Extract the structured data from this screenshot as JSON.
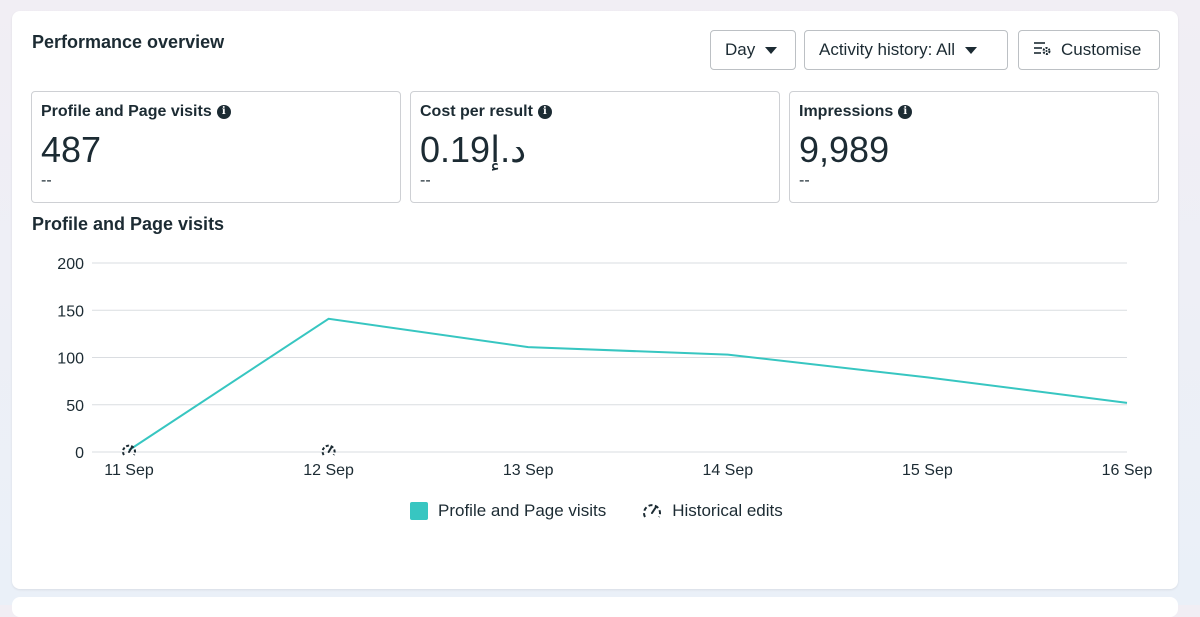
{
  "header": {
    "title": "Performance overview",
    "day_label": "Day",
    "activity_label": "Activity history: All",
    "customise_label": "Customise"
  },
  "metrics": [
    {
      "label": "Profile and Page visits",
      "value": "487",
      "compare": "--"
    },
    {
      "label": "Cost per result",
      "value": "0.19د.إ",
      "compare": "--"
    },
    {
      "label": "Impressions",
      "value": "9,989",
      "compare": "--"
    }
  ],
  "chart_title": "Profile and Page visits",
  "chart_data": {
    "type": "line",
    "categories": [
      "11 Sep",
      "12 Sep",
      "13 Sep",
      "14 Sep",
      "15 Sep",
      "16 Sep"
    ],
    "series": [
      {
        "name": "Profile and Page visits",
        "values": [
          2,
          141,
          111,
          103,
          79,
          52
        ],
        "color": "#37c6c1"
      }
    ],
    "yticks": [
      0,
      50,
      100,
      150,
      200
    ],
    "ylim": [
      0,
      200
    ],
    "historical_edits_at": [
      "11 Sep",
      "12 Sep"
    ],
    "grid": true,
    "legend": "bottom-center"
  },
  "legend": {
    "series_label": "Profile and Page visits",
    "edits_label": "Historical edits"
  },
  "icons": {
    "info": "info-icon",
    "customise": "sliders-gear-icon",
    "edits": "gauge-icon"
  }
}
